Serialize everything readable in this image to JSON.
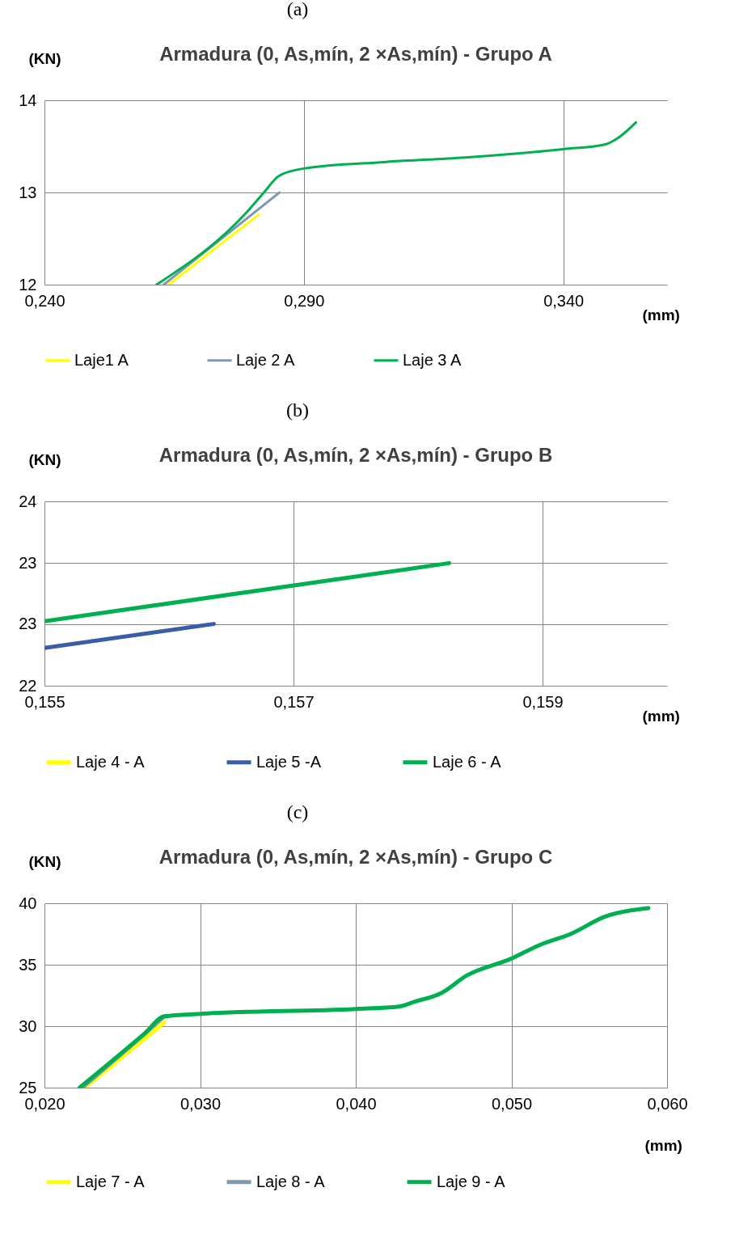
{
  "chart_data": [
    {
      "type": "line",
      "title": "Armadura (0, As,mín, 2 ×As,mín) - Grupo A",
      "annotations": [
        "(a)"
      ],
      "xlabel": "(mm)",
      "ylabel": "(KN)",
      "xlim": [
        0.24,
        0.36
      ],
      "ylim": [
        12,
        14
      ],
      "xticks": [
        {
          "value": 0.24,
          "label": "0,240"
        },
        {
          "value": 0.29,
          "label": "0,290"
        },
        {
          "value": 0.34,
          "label": "0,340"
        }
      ],
      "yticks": [
        12,
        13,
        14
      ],
      "grid": true,
      "legend": "bottom",
      "series": [
        {
          "name": "Laje1 A",
          "color": "#ffff00",
          "x": [
            0.2639,
            0.2813
          ],
          "values": [
            12,
            12.76
          ]
        },
        {
          "name": "Laje 2 A",
          "color": "#8497b0",
          "x": [
            0.263,
            0.2853
          ],
          "values": [
            12,
            13.0
          ]
        },
        {
          "name": "Laje 3 A",
          "color": "#00b050",
          "x": [
            0.2616,
            0.2789,
            0.2823,
            0.2852,
            0.29,
            0.3055,
            0.3211,
            0.34,
            0.348,
            0.351,
            0.354
          ],
          "values": [
            12,
            12.78,
            13.0,
            13.18,
            13.26,
            13.33,
            13.38,
            13.47,
            13.52,
            13.61,
            13.76
          ]
        }
      ]
    },
    {
      "type": "line",
      "title": "Armadura (0, As,mín, 2 ×As,mín) - Grupo B",
      "annotations": [
        "(b)"
      ],
      "xlabel": "(mm)",
      "ylabel": "(KN)",
      "xlim": [
        0.155,
        0.16
      ],
      "ylim": [
        22,
        24
      ],
      "xticks": [
        {
          "value": 0.155,
          "label": "0,155"
        },
        {
          "value": 0.157,
          "label": "0,157"
        },
        {
          "value": 0.159,
          "label": "0,159"
        }
      ],
      "yticks": [
        22,
        {
          "value": 22.667,
          "label": "23"
        },
        {
          "value": 23.333,
          "label": "23"
        },
        24
      ],
      "grid": true,
      "legend": "bottom",
      "series": [
        {
          "name": "Laje 4 - A",
          "color": "#ffff00"
        },
        {
          "name": "Laje 5 -A",
          "color": "#3b5ca8",
          "x": [
            0.155,
            0.15636
          ],
          "values": [
            22.41,
            22.67
          ]
        },
        {
          "name": "Laje 6 - A",
          "color": "#00b050",
          "x": [
            0.155,
            0.15825
          ],
          "values": [
            22.7,
            23.33
          ]
        }
      ]
    },
    {
      "type": "line",
      "title": "Armadura (0, As,mín, 2 ×As,mín) - Grupo C",
      "annotations": [
        "(c)"
      ],
      "xlabel": "(mm)",
      "ylabel": "(KN)",
      "xlim": [
        0.02,
        0.06
      ],
      "ylim": [
        25,
        40
      ],
      "xticks": [
        {
          "value": 0.02,
          "label": "0,020"
        },
        {
          "value": 0.03,
          "label": "0,030"
        },
        {
          "value": 0.04,
          "label": "0,040"
        },
        {
          "value": 0.05,
          "label": "0,050"
        },
        {
          "value": 0.06,
          "label": "0,060"
        }
      ],
      "yticks": [
        25,
        30,
        35,
        40
      ],
      "grid": true,
      "legend": "bottom",
      "series": [
        {
          "name": "Laje 7 - A",
          "color": "#ffff00",
          "x": [
            0.0226,
            0.0277
          ],
          "values": [
            25,
            30.3
          ]
        },
        {
          "name": "Laje 8 - A",
          "color": "#8497b0",
          "x": [
            0.02242,
            0.02663,
            0.0277
          ],
          "values": [
            25,
            29.6,
            30.8
          ]
        },
        {
          "name": "Laje 9 - A",
          "color": "#00b050",
          "x": [
            0.02226,
            0.02643,
            0.02771,
            0.03,
            0.04,
            0.04278,
            0.0438,
            0.0455,
            0.0471,
            0.05,
            0.0518,
            0.0538,
            0.056,
            0.0588
          ],
          "values": [
            25,
            29.4,
            30.8,
            31.0,
            31.4,
            31.6,
            32.0,
            32.7,
            34.1,
            35.5,
            36.6,
            37.5,
            38.9,
            39.6
          ]
        }
      ]
    }
  ]
}
